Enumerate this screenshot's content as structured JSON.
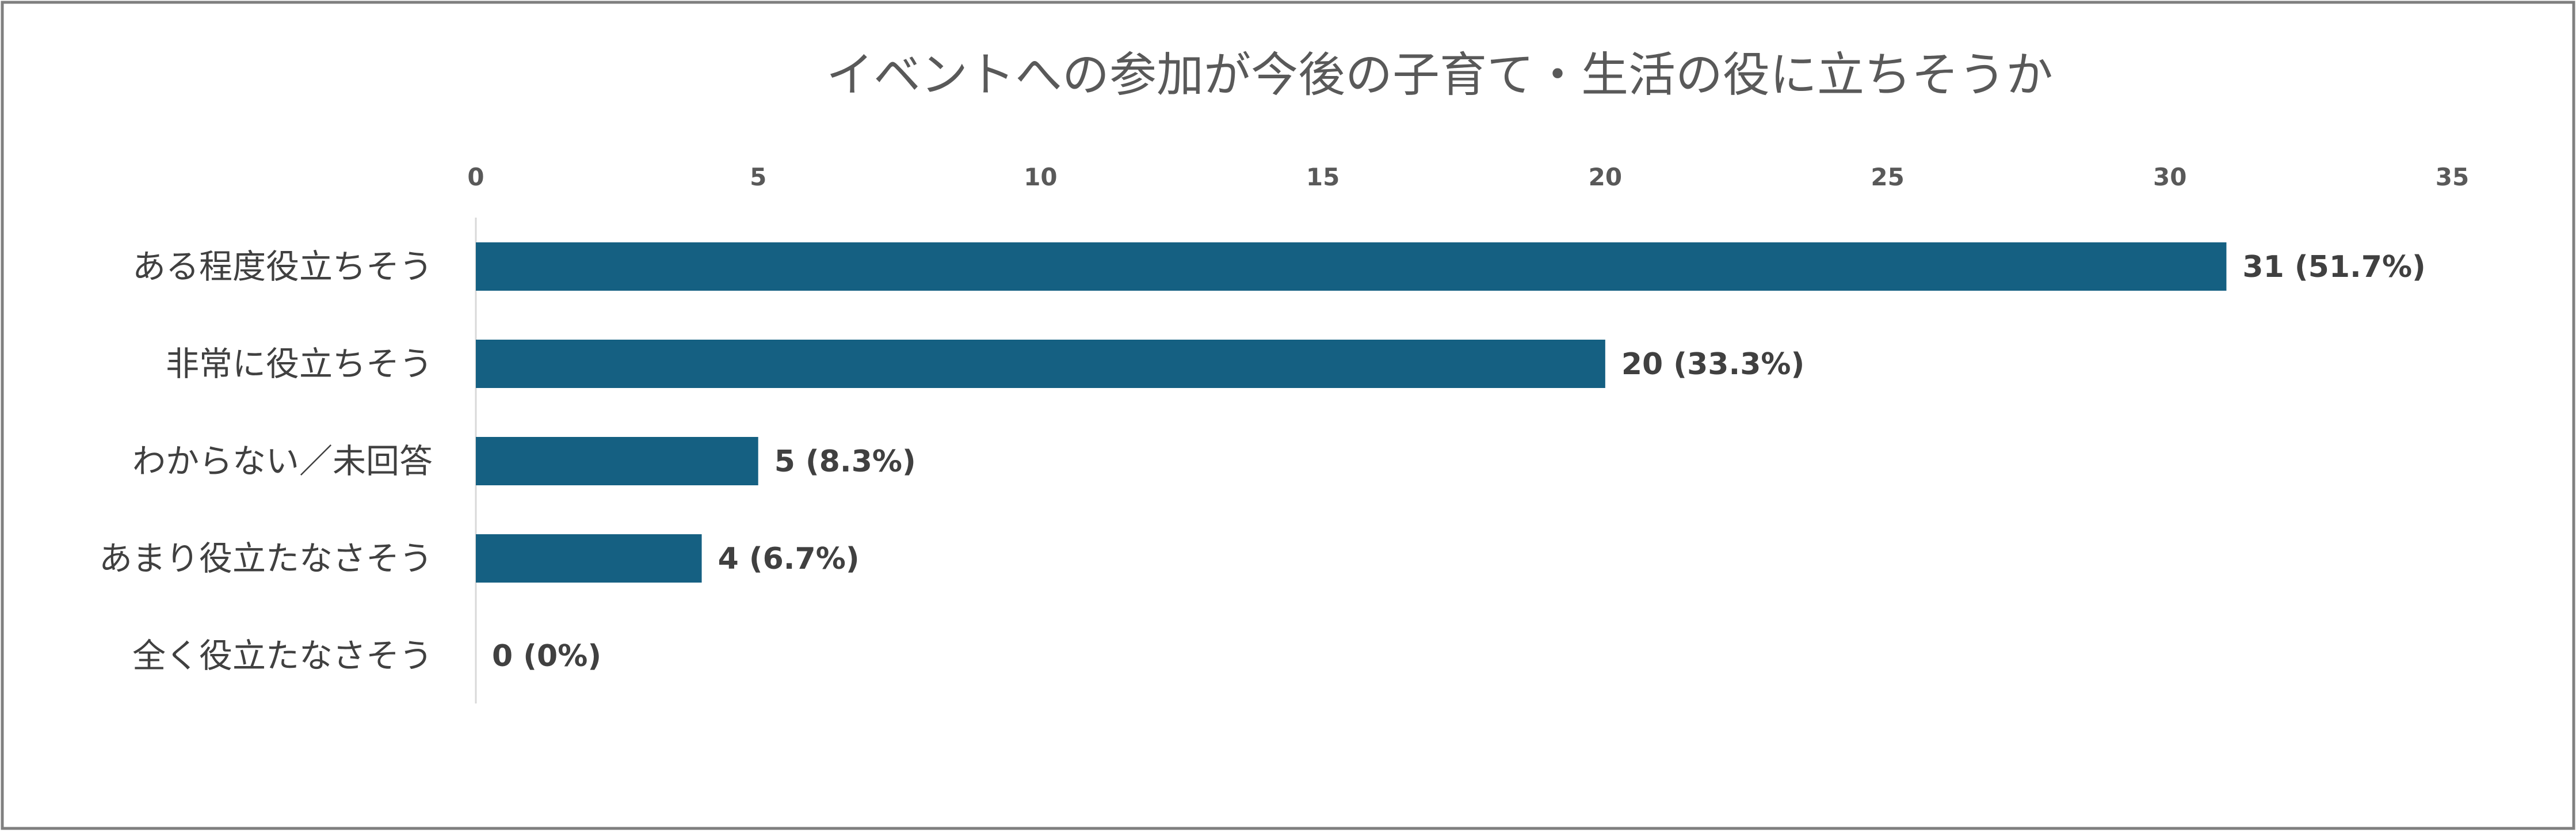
{
  "chart_data": {
    "type": "bar",
    "orientation": "horizontal",
    "title": "イベントへの参加が今後の子育て・生活の役に立ちそうか",
    "categories": [
      "ある程度役立ちそう",
      "非常に役立ちそう",
      "わからない／未回答",
      "あまり役立たなさそう",
      "全く役立たなさそう"
    ],
    "values": [
      31,
      20,
      5,
      4,
      0
    ],
    "data_labels": [
      "31 (51.7%)",
      "20 (33.3%)",
      "5 (8.3%)",
      "4 (6.7%)",
      "0 (0%)"
    ],
    "xlim": [
      0,
      35
    ],
    "x_ticks": [
      0,
      5,
      10,
      15,
      20,
      25,
      30,
      35
    ],
    "x_tick_labels": [
      "0",
      "5",
      "10",
      "15",
      "20",
      "25",
      "30",
      "35"
    ],
    "axis_position": "top",
    "grid": false,
    "legend": "none",
    "bar_color": "#156082",
    "frame_color": "#7f7f7f"
  }
}
